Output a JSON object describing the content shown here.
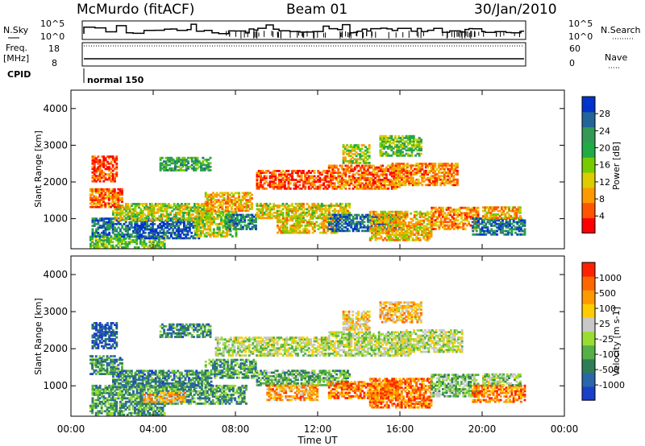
{
  "header": {
    "station": "McMurdo (fitACF)",
    "beam": "Beam 01",
    "date": "30/Jan/2010"
  },
  "strip_panels": {
    "nsky_label": "N.Sky",
    "nsearch_label": "N.Search",
    "freq_label_line1": "Freq.",
    "freq_label_line2": "[MHz]",
    "nave_label": "Nave",
    "cpid_label": "CPID",
    "cpid_value": "normal 150",
    "noise_left_ticks": [
      "10^5",
      "10^0"
    ],
    "noise_right_ticks": [
      "10^5",
      "10^0"
    ],
    "freq_ticks": [
      "18",
      "8"
    ],
    "nave_ticks": [
      "60",
      "0"
    ]
  },
  "chart_data": [
    {
      "type": "heatmap",
      "title": "",
      "xlabel": "",
      "ylabel": "Slant Range [km]",
      "x_range_hours": [
        0,
        24
      ],
      "ylim": [
        180,
        4500
      ],
      "y_ticks": [
        "1000",
        "2000",
        "3000",
        "4000"
      ],
      "colorbar_label": "Power [dB]",
      "colorbar_ticks": [
        "28",
        "24",
        "20",
        "16",
        "12",
        "8",
        "4"
      ],
      "colorbar_colors": [
        "#ff0000",
        "#ff5500",
        "#ff9900",
        "#ddcc00",
        "#77cc00",
        "#22aa44",
        "#339955",
        "#226699",
        "#0033cc"
      ],
      "regions": [
        {
          "t0": 0.9,
          "t1": 4.5,
          "r0": 200,
          "r1": 500,
          "v": 0.55
        },
        {
          "t0": 1.0,
          "t1": 3.2,
          "r0": 500,
          "r1": 1000,
          "v": 0.8
        },
        {
          "t0": 3.2,
          "t1": 6.2,
          "r0": 450,
          "r1": 1000,
          "v": 0.9
        },
        {
          "t0": 2.0,
          "t1": 6.8,
          "r0": 950,
          "r1": 1400,
          "v": 0.45
        },
        {
          "t0": 0.9,
          "t1": 2.5,
          "r0": 1300,
          "r1": 1800,
          "v": 0.2
        },
        {
          "t0": 1.0,
          "t1": 2.2,
          "r0": 2000,
          "r1": 2700,
          "v": 0.15
        },
        {
          "t0": 4.3,
          "t1": 6.8,
          "r0": 2300,
          "r1": 2650,
          "v": 0.65
        },
        {
          "t0": 6.0,
          "t1": 8.0,
          "r0": 500,
          "r1": 1200,
          "v": 0.45
        },
        {
          "t0": 6.5,
          "t1": 8.8,
          "r0": 1200,
          "r1": 1700,
          "v": 0.3
        },
        {
          "t0": 7.5,
          "t1": 9.0,
          "r0": 700,
          "r1": 1100,
          "v": 0.75
        },
        {
          "t0": 9.0,
          "t1": 13.5,
          "r0": 1000,
          "r1": 1400,
          "v": 0.4
        },
        {
          "t0": 10.0,
          "t1": 13.0,
          "r0": 600,
          "r1": 1000,
          "v": 0.35
        },
        {
          "t0": 9.0,
          "t1": 12.5,
          "r0": 1800,
          "r1": 2300,
          "v": 0.15
        },
        {
          "t0": 12.5,
          "t1": 16.0,
          "r0": 650,
          "r1": 1100,
          "v": 0.85
        },
        {
          "t0": 12.5,
          "t1": 16.0,
          "r0": 1800,
          "r1": 2450,
          "v": 0.2
        },
        {
          "t0": 13.2,
          "t1": 14.5,
          "r0": 2500,
          "r1": 3000,
          "v": 0.45
        },
        {
          "t0": 15.0,
          "t1": 17.0,
          "r0": 2700,
          "r1": 3250,
          "v": 0.55
        },
        {
          "t0": 15.5,
          "t1": 18.8,
          "r0": 1900,
          "r1": 2500,
          "v": 0.25
        },
        {
          "t0": 14.5,
          "t1": 17.5,
          "r0": 400,
          "r1": 1200,
          "v": 0.35
        },
        {
          "t0": 17.5,
          "t1": 19.8,
          "r0": 700,
          "r1": 1300,
          "v": 0.25
        },
        {
          "t0": 19.5,
          "t1": 22.1,
          "r0": 550,
          "r1": 1000,
          "v": 0.8
        },
        {
          "t0": 20.0,
          "t1": 21.8,
          "r0": 1000,
          "r1": 1300,
          "v": 0.3
        }
      ]
    },
    {
      "type": "heatmap",
      "title": "",
      "xlabel": "Time UT",
      "ylabel": "Slant Range [km]",
      "x_range_hours": [
        0,
        24
      ],
      "x_ticks": [
        "00:00",
        "04:00",
        "08:00",
        "12:00",
        "16:00",
        "20:00",
        "00:00"
      ],
      "ylim": [
        180,
        4500
      ],
      "y_ticks": [
        "1000",
        "2000",
        "3000",
        "4000"
      ],
      "colorbar_label": "Velocity [m s-1]",
      "colorbar_ticks": [
        "1000",
        "500",
        "100",
        "25",
        "-25",
        "-100",
        "-500",
        "-1000"
      ],
      "colorbar_colors": [
        "#1a3fc8",
        "#2a66aa",
        "#2e7d57",
        "#55b045",
        "#99dd33",
        "#c8c8c8",
        "#ffcc00",
        "#ff9900",
        "#ff6600",
        "#ff2200"
      ],
      "regions": [
        {
          "t0": 0.9,
          "t1": 4.5,
          "r0": 200,
          "r1": 500,
          "v": 0.3
        },
        {
          "t0": 1.0,
          "t1": 8.5,
          "r0": 500,
          "r1": 1000,
          "v": 0.3
        },
        {
          "t0": 3.5,
          "t1": 5.5,
          "r0": 550,
          "r1": 800,
          "v": 0.7
        },
        {
          "t0": 2.0,
          "t1": 6.8,
          "r0": 950,
          "r1": 1400,
          "v": 0.25
        },
        {
          "t0": 0.9,
          "t1": 2.5,
          "r0": 1300,
          "r1": 1800,
          "v": 0.25
        },
        {
          "t0": 1.0,
          "t1": 2.2,
          "r0": 2000,
          "r1": 2700,
          "v": 0.1
        },
        {
          "t0": 4.3,
          "t1": 6.8,
          "r0": 2300,
          "r1": 2650,
          "v": 0.25
        },
        {
          "t0": 6.5,
          "t1": 9.0,
          "r0": 1200,
          "r1": 1700,
          "v": 0.3
        },
        {
          "t0": 7.0,
          "t1": 9.0,
          "r0": 1800,
          "r1": 2300,
          "v": 0.5
        },
        {
          "t0": 9.0,
          "t1": 13.5,
          "r0": 1000,
          "r1": 1400,
          "v": 0.35
        },
        {
          "t0": 9.5,
          "t1": 12.0,
          "r0": 600,
          "r1": 1000,
          "v": 0.72
        },
        {
          "t0": 9.0,
          "t1": 12.5,
          "r0": 1800,
          "r1": 2300,
          "v": 0.5
        },
        {
          "t0": 12.5,
          "t1": 16.0,
          "r0": 650,
          "r1": 1100,
          "v": 0.8
        },
        {
          "t0": 12.5,
          "t1": 16.5,
          "r0": 1800,
          "r1": 2450,
          "v": 0.5
        },
        {
          "t0": 13.2,
          "t1": 14.5,
          "r0": 2500,
          "r1": 3000,
          "v": 0.65
        },
        {
          "t0": 15.0,
          "t1": 17.0,
          "r0": 2700,
          "r1": 3250,
          "v": 0.68
        },
        {
          "t0": 16.0,
          "t1": 19.0,
          "r0": 1900,
          "r1": 2500,
          "v": 0.5
        },
        {
          "t0": 14.5,
          "t1": 17.5,
          "r0": 400,
          "r1": 1200,
          "v": 0.82
        },
        {
          "t0": 17.5,
          "t1": 19.8,
          "r0": 700,
          "r1": 1300,
          "v": 0.4
        },
        {
          "t0": 19.5,
          "t1": 22.1,
          "r0": 550,
          "r1": 1000,
          "v": 0.8
        },
        {
          "t0": 20.0,
          "t1": 21.8,
          "r0": 1000,
          "r1": 1300,
          "v": 0.45
        }
      ]
    }
  ]
}
